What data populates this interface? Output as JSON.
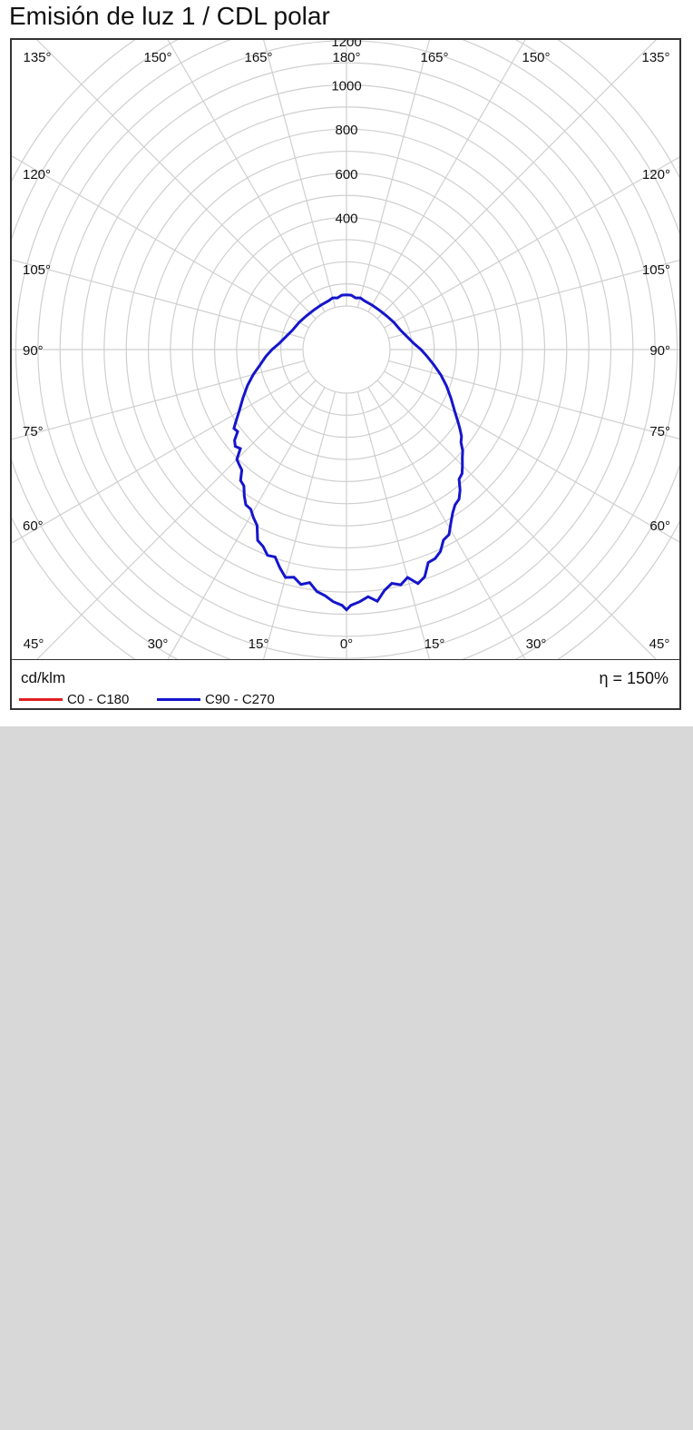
{
  "chart_data": {
    "type": "polar",
    "title": "Emisión de luz 1 / CDL polar",
    "unit": "cd/klm",
    "efficiency": "η = 150%",
    "radial_ticks": [
      200,
      400,
      600,
      800,
      1000,
      1200
    ],
    "radial_tick_labels": [
      "400",
      "600",
      "800",
      "1000",
      "1200"
    ],
    "r_max_visible": 1400,
    "angle_labels_top": [
      "135°",
      "150°",
      "165°",
      "180°",
      "165°",
      "150°",
      "135°"
    ],
    "angle_labels_bottom": [
      "45°",
      "30°",
      "15°",
      "0°",
      "15°",
      "30°",
      "45°"
    ],
    "angle_labels_left": [
      "120°",
      "105°",
      "90°",
      "75°",
      "60°"
    ],
    "angle_labels_right": [
      "120°",
      "105°",
      "90°",
      "75°",
      "60°"
    ],
    "series": [
      {
        "name": "C0 - C180",
        "color": "#e02020",
        "points": []
      },
      {
        "name": "C90 - C270",
        "color": "#1515cc",
        "points": [
          [
            -180,
            50
          ],
          [
            -175,
            50
          ],
          [
            -170,
            40
          ],
          [
            -165,
            45
          ],
          [
            -160,
            38
          ],
          [
            -150,
            35
          ],
          [
            -140,
            35
          ],
          [
            -130,
            40
          ],
          [
            -120,
            50
          ],
          [
            -110,
            62
          ],
          [
            -100,
            90
          ],
          [
            -95,
            110
          ],
          [
            -90,
            140
          ],
          [
            -85,
            170
          ],
          [
            -80,
            200
          ],
          [
            -75,
            240
          ],
          [
            -70,
            280
          ],
          [
            -65,
            320
          ],
          [
            -60,
            365
          ],
          [
            -57,
            400
          ],
          [
            -55,
            425
          ],
          [
            -53,
            420
          ],
          [
            -51,
            455
          ],
          [
            -49,
            470
          ],
          [
            -47,
            460
          ],
          [
            -45,
            505
          ],
          [
            -43,
            515
          ],
          [
            -41,
            525
          ],
          [
            -39,
            565
          ],
          [
            -37,
            575
          ],
          [
            -35,
            610
          ],
          [
            -33,
            640
          ],
          [
            -31,
            645
          ],
          [
            -29,
            672
          ],
          [
            -27,
            695
          ],
          [
            -25,
            755
          ],
          [
            -23,
            770
          ],
          [
            -21,
            800
          ],
          [
            -19,
            795
          ],
          [
            -17,
            835
          ],
          [
            -15,
            870
          ],
          [
            -13,
            860
          ],
          [
            -11,
            885
          ],
          [
            -9,
            870
          ],
          [
            -7,
            905
          ],
          [
            -5,
            920
          ],
          [
            -3,
            945
          ],
          [
            -1,
            960
          ],
          [
            0,
            980
          ],
          [
            1,
            960
          ],
          [
            3,
            945
          ],
          [
            5,
            925
          ],
          [
            7,
            950
          ],
          [
            9,
            905
          ],
          [
            11,
            880
          ],
          [
            13,
            895
          ],
          [
            15,
            870
          ],
          [
            17,
            910
          ],
          [
            19,
            890
          ],
          [
            21,
            835
          ],
          [
            23,
            830
          ],
          [
            25,
            810
          ],
          [
            27,
            770
          ],
          [
            29,
            760
          ],
          [
            31,
            720
          ],
          [
            33,
            685
          ],
          [
            35,
            660
          ],
          [
            37,
            650
          ],
          [
            39,
            620
          ],
          [
            41,
            580
          ],
          [
            43,
            570
          ],
          [
            45,
            545
          ],
          [
            47,
            520
          ],
          [
            49,
            500
          ],
          [
            51,
            470
          ],
          [
            53,
            455
          ],
          [
            55,
            430
          ],
          [
            57,
            405
          ],
          [
            60,
            370
          ],
          [
            65,
            325
          ],
          [
            70,
            285
          ],
          [
            75,
            245
          ],
          [
            80,
            205
          ],
          [
            85,
            170
          ],
          [
            90,
            140
          ],
          [
            95,
            110
          ],
          [
            100,
            90
          ],
          [
            110,
            62
          ],
          [
            120,
            50
          ],
          [
            130,
            40
          ],
          [
            140,
            35
          ],
          [
            150,
            35
          ],
          [
            160,
            38
          ],
          [
            165,
            45
          ],
          [
            170,
            40
          ],
          [
            175,
            50
          ],
          [
            180,
            50
          ]
        ]
      }
    ]
  },
  "colors": {
    "grid": "#cfcfcf",
    "frame": "#333333",
    "background_page": "#d8d8d8"
  }
}
